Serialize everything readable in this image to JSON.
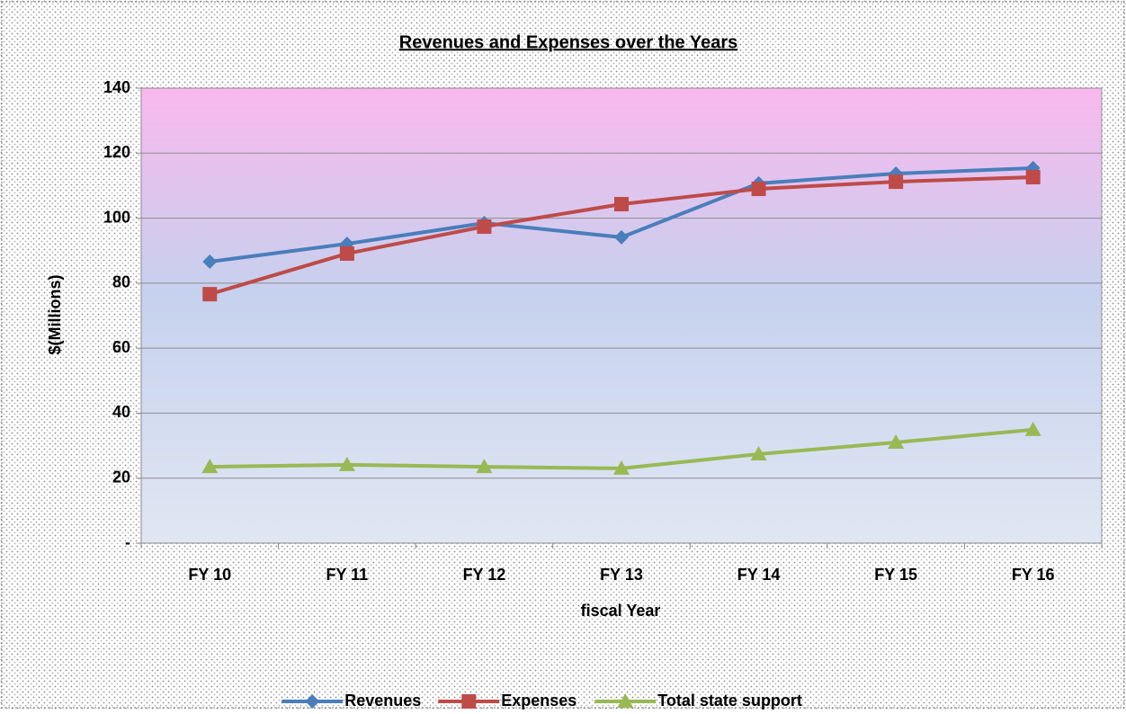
{
  "chart_data": {
    "type": "line",
    "title": "Revenues and Expenses over the Years",
    "x_label": "fiscal Year",
    "y_label": "$(Millions)",
    "categories": [
      "FY 10",
      "FY 11",
      "FY 12",
      "FY 13",
      "FY 14",
      "FY 15",
      "FY 16"
    ],
    "series": [
      {
        "name": "Revenues",
        "color": "#4a7ebb",
        "marker": "diamond",
        "values": [
          86.6,
          92.1,
          98.5,
          94.1,
          110.7,
          113.7,
          115.4
        ]
      },
      {
        "name": "Expenses",
        "color": "#be4b48",
        "marker": "square",
        "values": [
          76.6,
          89.1,
          97.4,
          104.3,
          109,
          111.2,
          112.6
        ]
      },
      {
        "name": "Total state support",
        "color": "#98b954",
        "marker": "triangle",
        "values": [
          23.5,
          24.1,
          23.5,
          23,
          27.4,
          31,
          34.9
        ]
      }
    ],
    "ylim": [
      0,
      140
    ],
    "yticks": [
      {
        "value": 0,
        "label": "-"
      },
      20,
      40,
      60,
      80,
      100,
      120,
      140
    ],
    "grid": true,
    "legend": "bottom"
  }
}
